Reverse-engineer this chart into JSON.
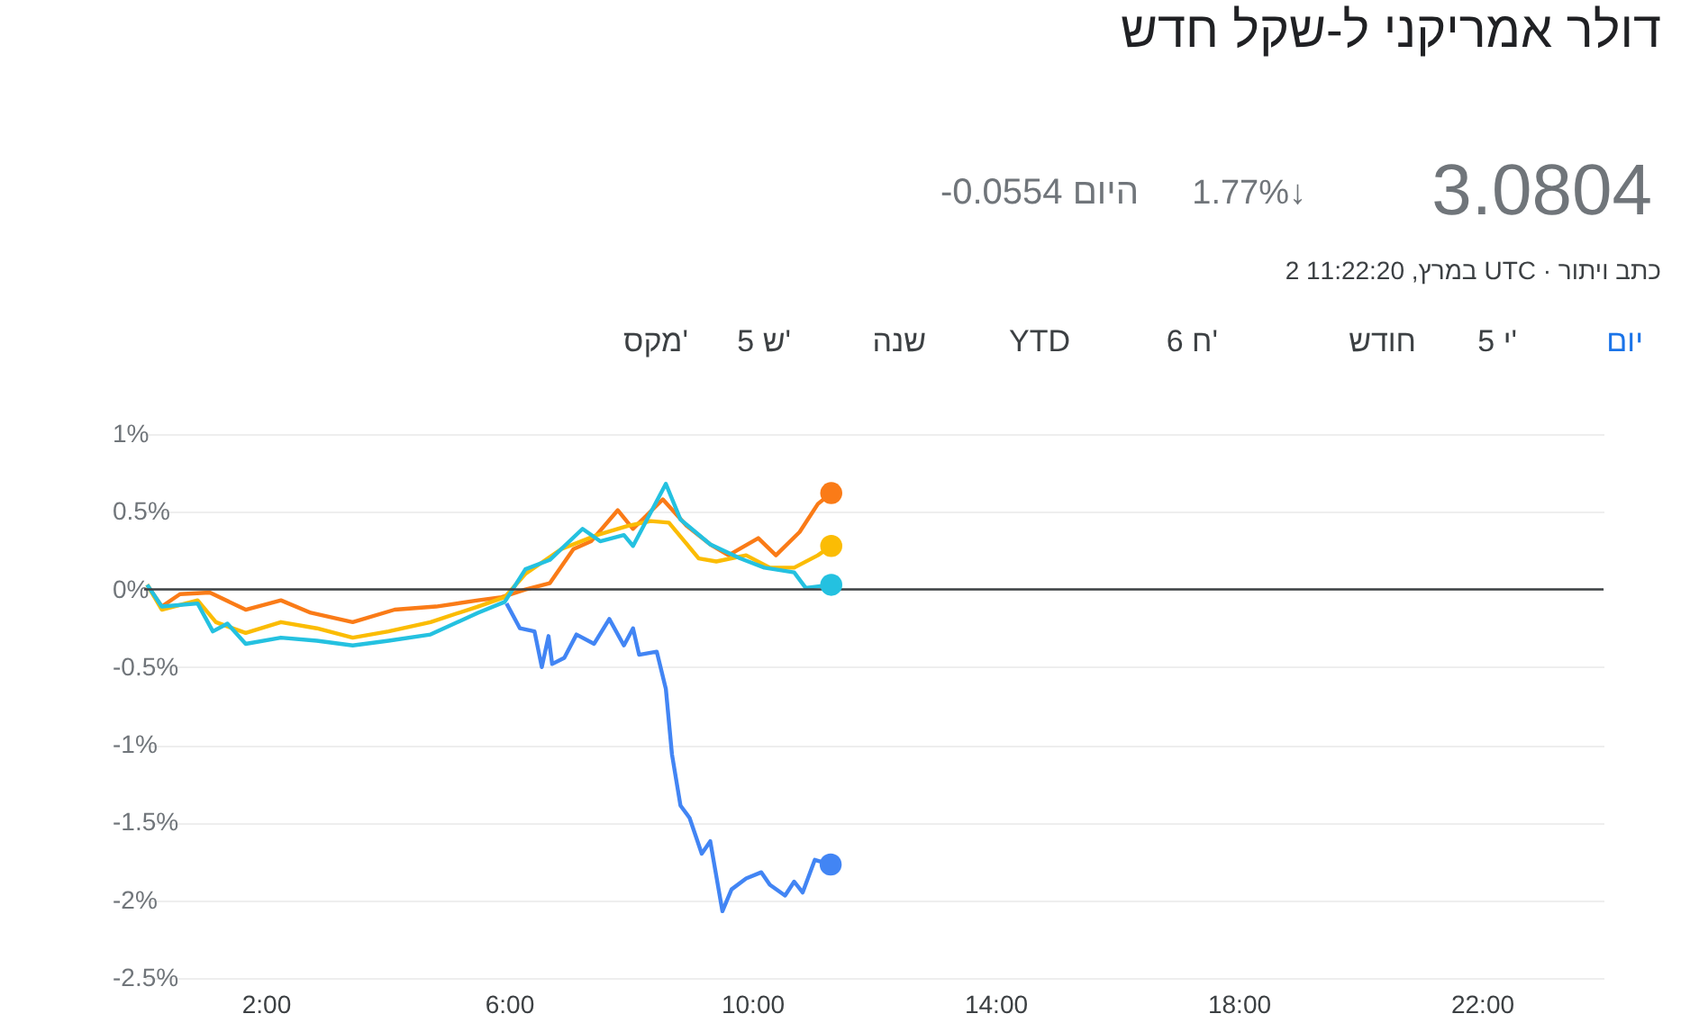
{
  "chart_data": {
    "type": "line",
    "title": "דולר אמריקני ל-שקל חדש",
    "annotations": [
      "3.0804",
      "1.77%↓",
      "-0.0554 היום",
      "2 במרץ, 11:22:20 UTC · כתב ויתור",
      "יום",
      "5 י'",
      "חודש",
      "6 ח'",
      "YTD",
      "שנה",
      "5 ש'",
      "מקס'"
    ],
    "series": [
      {
        "color": "#fa7b17",
        "x": [
          0.05,
          0.29,
          0.59,
          1.08,
          1.67,
          2.25,
          2.74,
          3.43,
          4.12,
          4.8,
          5.49,
          5.88,
          6.27,
          6.67,
          7.06,
          7.35,
          7.79,
          8.04,
          8.53,
          8.92,
          9.31,
          9.61,
          10.1,
          10.39,
          10.78,
          11.08,
          11.3
        ],
        "values": [
          0.03,
          -0.11,
          -0.03,
          -0.02,
          -0.13,
          -0.07,
          -0.15,
          -0.21,
          -0.13,
          -0.11,
          -0.07,
          -0.05,
          0.0,
          0.04,
          0.26,
          0.31,
          0.51,
          0.39,
          0.58,
          0.41,
          0.29,
          0.22,
          0.33,
          0.22,
          0.37,
          0.55,
          0.62
        ]
      },
      {
        "color": "#fbbc04",
        "x": [
          0.05,
          0.29,
          0.88,
          1.18,
          1.67,
          2.25,
          2.84,
          3.43,
          4.02,
          4.71,
          5.49,
          5.93,
          6.27,
          6.86,
          7.45,
          7.96,
          8.33,
          8.63,
          9.12,
          9.41,
          9.9,
          10.29,
          10.69,
          11.08,
          11.3
        ],
        "values": [
          0.03,
          -0.13,
          -0.07,
          -0.21,
          -0.28,
          -0.21,
          -0.25,
          -0.31,
          -0.27,
          -0.21,
          -0.11,
          -0.05,
          0.1,
          0.26,
          0.35,
          0.41,
          0.44,
          0.43,
          0.2,
          0.18,
          0.22,
          0.14,
          0.14,
          0.22,
          0.28
        ]
      },
      {
        "color": "#24c1e0",
        "x": [
          0.05,
          0.29,
          0.88,
          1.13,
          1.37,
          1.67,
          2.25,
          2.84,
          3.43,
          4.02,
          4.71,
          5.49,
          5.93,
          6.27,
          6.67,
          7.21,
          7.5,
          7.89,
          8.04,
          8.58,
          8.82,
          9.31,
          9.8,
          10.2,
          10.69,
          10.88,
          11.3
        ],
        "values": [
          0.03,
          -0.11,
          -0.09,
          -0.27,
          -0.22,
          -0.35,
          -0.31,
          -0.33,
          -0.36,
          -0.33,
          -0.29,
          -0.15,
          -0.08,
          0.13,
          0.19,
          0.39,
          0.31,
          0.35,
          0.28,
          0.68,
          0.45,
          0.29,
          0.2,
          0.14,
          0.11,
          0.01,
          0.03
        ]
      },
      {
        "color": "#4285f4",
        "x": [
          5.96,
          6.18,
          6.42,
          6.54,
          6.65,
          6.71,
          6.91,
          7.11,
          7.4,
          7.65,
          7.89,
          8.04,
          8.14,
          8.43,
          8.58,
          8.68,
          8.82,
          8.97,
          9.17,
          9.31,
          9.51,
          9.66,
          9.9,
          10.15,
          10.29,
          10.54,
          10.69,
          10.83,
          11.03,
          11.29
        ],
        "values": [
          -0.09,
          -0.25,
          -0.27,
          -0.5,
          -0.3,
          -0.48,
          -0.44,
          -0.29,
          -0.35,
          -0.19,
          -0.36,
          -0.25,
          -0.42,
          -0.4,
          -0.64,
          -1.06,
          -1.39,
          -1.47,
          -1.7,
          -1.62,
          -2.07,
          -1.93,
          -1.86,
          -1.82,
          -1.9,
          -1.97,
          -1.88,
          -1.95,
          -1.74,
          -1.77
        ]
      }
    ],
    "xlim": [
      0,
      24
    ],
    "xticks": [
      {
        "value": 2,
        "label": "2:00"
      },
      {
        "value": 6,
        "label": "6:00"
      },
      {
        "value": 10,
        "label": "10:00"
      },
      {
        "value": 14,
        "label": "14:00"
      },
      {
        "value": 18,
        "label": "18:00"
      },
      {
        "value": 22,
        "label": "22:00"
      }
    ],
    "ylim": [
      -2.5,
      1
    ],
    "yticks": [
      {
        "value": -2.5,
        "label": "-2.5%"
      },
      {
        "value": -2,
        "label": "-2%"
      },
      {
        "value": -1.5,
        "label": "-1.5%"
      },
      {
        "value": -1,
        "label": "-1%"
      },
      {
        "value": -0.5,
        "label": "-0.5%"
      },
      {
        "value": 0,
        "label": "0%"
      },
      {
        "value": 0.5,
        "label": "0.5%"
      },
      {
        "value": 1,
        "label": "1%"
      }
    ],
    "grid": "y",
    "ref_lines": [
      {
        "axis": "y",
        "value": 0,
        "color": "#3c4043"
      }
    ]
  }
}
